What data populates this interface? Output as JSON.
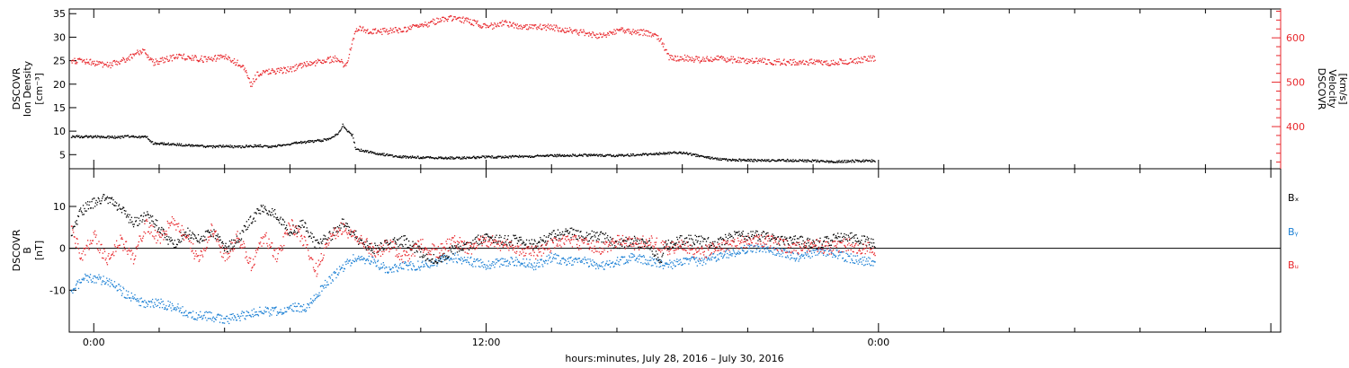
{
  "colors": {
    "density": "#000000",
    "velocity": "#e8262b",
    "bx": "#000000",
    "by": "#1a7fd4",
    "bz": "#e8262b",
    "axis": "#000000"
  },
  "x_axis": {
    "label": "hours:minutes, July 28, 2016 – July 30, 2016",
    "range_hours": [
      -0.75,
      36.3
    ],
    "ticks": [
      {
        "hour": 0,
        "label": "0:00"
      },
      {
        "hour": 12,
        "label": "12:00"
      },
      {
        "hour": 24,
        "label": "0:00"
      }
    ],
    "minor_every_hours": 2
  },
  "chart_data": [
    {
      "type": "scatter",
      "panel": "top",
      "left_axis": {
        "label_lines": [
          "DSCOVR",
          "Ion Density",
          "[cm⁻³]"
        ],
        "ylim": [
          2,
          36
        ],
        "ticks": [
          5,
          10,
          15,
          20,
          25,
          30,
          35
        ]
      },
      "right_axis": {
        "label_lines": [
          "DSCOVR",
          "Velocity",
          "[km/s]"
        ],
        "ylim": [
          305,
          665
        ],
        "ticks": [
          400,
          500,
          600
        ]
      },
      "series": [
        {
          "key": "density",
          "axis": "left",
          "points": [
            [
              -0.7,
              9.0
            ],
            [
              0,
              8.9
            ],
            [
              0.8,
              8.8
            ],
            [
              0.9,
              9.0
            ],
            [
              1.4,
              8.9
            ],
            [
              1.5,
              8.8
            ],
            [
              1.6,
              9.0
            ],
            [
              1.8,
              7.5
            ],
            [
              2.5,
              7.3
            ],
            [
              3,
              7.0
            ],
            [
              3.5,
              6.8
            ],
            [
              4,
              6.9
            ],
            [
              4.5,
              6.8
            ],
            [
              5,
              7.0
            ],
            [
              5.4,
              6.8
            ],
            [
              5.8,
              7.2
            ],
            [
              6.2,
              7.6
            ],
            [
              6.6,
              7.9
            ],
            [
              7,
              8.2
            ],
            [
              7.3,
              8.8
            ],
            [
              7.5,
              10.0
            ],
            [
              7.6,
              11.5
            ],
            [
              7.7,
              10.5
            ],
            [
              7.8,
              9.8
            ],
            [
              7.9,
              9.2
            ],
            [
              8.0,
              6.3
            ],
            [
              8.3,
              5.8
            ],
            [
              8.8,
              5.2
            ],
            [
              9.3,
              4.7
            ],
            [
              10,
              4.5
            ],
            [
              11,
              4.4
            ],
            [
              12,
              4.6
            ],
            [
              13,
              4.7
            ],
            [
              14,
              4.9
            ],
            [
              15,
              5.0
            ],
            [
              16,
              4.9
            ],
            [
              17,
              5.2
            ],
            [
              17.8,
              5.6
            ],
            [
              18.2,
              5.3
            ],
            [
              18.5,
              4.8
            ],
            [
              19,
              4.2
            ],
            [
              19.5,
              4.0
            ],
            [
              20,
              3.9
            ],
            [
              21,
              3.9
            ],
            [
              22,
              3.8
            ],
            [
              22.5,
              3.6
            ],
            [
              23,
              3.7
            ],
            [
              23.5,
              3.8
            ],
            [
              23.9,
              3.8
            ]
          ]
        },
        {
          "key": "velocity",
          "axis": "right",
          "points": [
            [
              -0.7,
              550
            ],
            [
              0,
              545
            ],
            [
              0.5,
              540
            ],
            [
              0.9,
              550
            ],
            [
              1.2,
              562
            ],
            [
              1.5,
              575
            ],
            [
              1.8,
              545
            ],
            [
              2.2,
              552
            ],
            [
              2.6,
              560
            ],
            [
              3,
              556
            ],
            [
              3.5,
              552
            ],
            [
              4,
              560
            ],
            [
              4.3,
              547
            ],
            [
              4.6,
              535
            ],
            [
              4.8,
              495
            ],
            [
              5,
              520
            ],
            [
              5.5,
              525
            ],
            [
              6,
              530
            ],
            [
              6.5,
              542
            ],
            [
              7,
              548
            ],
            [
              7.4,
              555
            ],
            [
              7.7,
              538
            ],
            [
              8,
              622
            ],
            [
              8.5,
              615
            ],
            [
              9,
              616
            ],
            [
              9.5,
              620
            ],
            [
              10,
              628
            ],
            [
              10.5,
              640
            ],
            [
              11,
              645
            ],
            [
              11.5,
              638
            ],
            [
              12,
              625
            ],
            [
              12.3,
              630
            ],
            [
              12.5,
              635
            ],
            [
              13,
              628
            ],
            [
              13.5,
              625
            ],
            [
              14,
              625
            ],
            [
              14.5,
              618
            ],
            [
              15,
              612
            ],
            [
              15.5,
              605
            ],
            [
              16,
              618
            ],
            [
              16.5,
              615
            ],
            [
              17,
              612
            ],
            [
              17.3,
              600
            ],
            [
              17.6,
              555
            ],
            [
              18,
              556
            ],
            [
              18.5,
              552
            ],
            [
              19,
              555
            ],
            [
              19.5,
              552
            ],
            [
              20,
              549
            ],
            [
              20.5,
              548
            ],
            [
              21,
              546
            ],
            [
              21.5,
              546
            ],
            [
              22,
              547
            ],
            [
              22.5,
              545
            ],
            [
              23,
              548
            ],
            [
              23.5,
              552
            ],
            [
              23.9,
              555
            ]
          ]
        }
      ]
    },
    {
      "type": "scatter",
      "panel": "bottom",
      "left_axis": {
        "label_lines": [
          "DSCOVR",
          "B",
          "[nT]"
        ],
        "ylim": [
          -20,
          19
        ],
        "ticks": [
          -10,
          0,
          10
        ]
      },
      "zero_line": true,
      "legend_position": "right",
      "series": [
        {
          "key": "bx",
          "name": "Bₓ",
          "points": [
            [
              -0.7,
              4
            ],
            [
              -0.4,
              9
            ],
            [
              0,
              11
            ],
            [
              0.4,
              12
            ],
            [
              0.8,
              10
            ],
            [
              1.2,
              6
            ],
            [
              1.6,
              8
            ],
            [
              2,
              5
            ],
            [
              2.4,
              1
            ],
            [
              2.8,
              4
            ],
            [
              3.2,
              2
            ],
            [
              3.6,
              4
            ],
            [
              4,
              0
            ],
            [
              4.4,
              2
            ],
            [
              4.8,
              7
            ],
            [
              5.2,
              10
            ],
            [
              5.6,
              8
            ],
            [
              6,
              4
            ],
            [
              6.4,
              6
            ],
            [
              6.8,
              1
            ],
            [
              7.2,
              3
            ],
            [
              7.6,
              6
            ],
            [
              7.9,
              4
            ],
            [
              8.2,
              1
            ],
            [
              8.6,
              0
            ],
            [
              9,
              1
            ],
            [
              9.5,
              2
            ],
            [
              10,
              -1
            ],
            [
              10.5,
              -3
            ],
            [
              11,
              0
            ],
            [
              11.5,
              1
            ],
            [
              12,
              3
            ],
            [
              12.5,
              2
            ],
            [
              13,
              2
            ],
            [
              13.5,
              1
            ],
            [
              14,
              3
            ],
            [
              14.5,
              4
            ],
            [
              15,
              3
            ],
            [
              15.5,
              3
            ],
            [
              16,
              1
            ],
            [
              16.5,
              2
            ],
            [
              17,
              1
            ],
            [
              17.3,
              -3
            ],
            [
              17.5,
              1
            ],
            [
              18,
              2
            ],
            [
              18.5,
              2
            ],
            [
              19,
              1
            ],
            [
              19.5,
              3
            ],
            [
              20,
              3
            ],
            [
              20.5,
              3
            ],
            [
              21,
              2
            ],
            [
              21.5,
              2
            ],
            [
              22,
              1
            ],
            [
              22.5,
              2
            ],
            [
              23,
              3
            ],
            [
              23.5,
              2
            ],
            [
              23.9,
              1
            ]
          ]
        },
        {
          "key": "by",
          "name": "Bᵧ",
          "points": [
            [
              -0.7,
              -10
            ],
            [
              -0.3,
              -7
            ],
            [
              0,
              -7
            ],
            [
              0.5,
              -8
            ],
            [
              1,
              -11
            ],
            [
              1.5,
              -13
            ],
            [
              2,
              -13
            ],
            [
              2.5,
              -14
            ],
            [
              3,
              -16
            ],
            [
              3.5,
              -16
            ],
            [
              4,
              -17
            ],
            [
              4.5,
              -16
            ],
            [
              5,
              -15
            ],
            [
              5.5,
              -15
            ],
            [
              6,
              -14
            ],
            [
              6.5,
              -14
            ],
            [
              7,
              -9
            ],
            [
              7.5,
              -5
            ],
            [
              8,
              -2
            ],
            [
              8.5,
              -3
            ],
            [
              9,
              -5
            ],
            [
              9.5,
              -4
            ],
            [
              10,
              -4
            ],
            [
              10.5,
              -3
            ],
            [
              11,
              -2
            ],
            [
              11.5,
              -3
            ],
            [
              12,
              -4
            ],
            [
              12.5,
              -3
            ],
            [
              13,
              -3
            ],
            [
              13.5,
              -4
            ],
            [
              14,
              -2
            ],
            [
              14.5,
              -3
            ],
            [
              15,
              -3
            ],
            [
              15.5,
              -4
            ],
            [
              16,
              -3
            ],
            [
              16.5,
              -2
            ],
            [
              17,
              -3
            ],
            [
              17.5,
              -4
            ],
            [
              18,
              -3
            ],
            [
              18.5,
              -3
            ],
            [
              19,
              -2
            ],
            [
              19.5,
              -1
            ],
            [
              20,
              0
            ],
            [
              20.5,
              0
            ],
            [
              21,
              -1
            ],
            [
              21.5,
              -2
            ],
            [
              22,
              -1
            ],
            [
              22.5,
              -1
            ],
            [
              23,
              -2
            ],
            [
              23.5,
              -3
            ],
            [
              23.9,
              -3
            ]
          ]
        },
        {
          "key": "bz",
          "name": "Bᵤ",
          "points": [
            [
              -0.7,
              5
            ],
            [
              -0.4,
              -2
            ],
            [
              0,
              3
            ],
            [
              0.4,
              -3
            ],
            [
              0.8,
              2
            ],
            [
              1.2,
              -2
            ],
            [
              1.6,
              6
            ],
            [
              2,
              2
            ],
            [
              2.4,
              7
            ],
            [
              2.8,
              3
            ],
            [
              3.2,
              -3
            ],
            [
              3.6,
              5
            ],
            [
              4,
              -2
            ],
            [
              4.4,
              3
            ],
            [
              4.8,
              -4
            ],
            [
              5.2,
              3
            ],
            [
              5.6,
              -2
            ],
            [
              6,
              6
            ],
            [
              6.4,
              2
            ],
            [
              6.8,
              -5
            ],
            [
              7.2,
              3
            ],
            [
              7.6,
              5
            ],
            [
              7.9,
              3
            ],
            [
              8.2,
              2
            ],
            [
              8.6,
              -1
            ],
            [
              9,
              1
            ],
            [
              9.5,
              -2
            ],
            [
              10,
              1
            ],
            [
              10.5,
              -1
            ],
            [
              11,
              2
            ],
            [
              11.5,
              0
            ],
            [
              12,
              2
            ],
            [
              12.5,
              1
            ],
            [
              13,
              0
            ],
            [
              13.5,
              -1
            ],
            [
              14,
              1
            ],
            [
              14.5,
              2
            ],
            [
              15,
              1
            ],
            [
              15.5,
              0
            ],
            [
              16,
              2
            ],
            [
              16.5,
              1
            ],
            [
              17,
              2
            ],
            [
              17.5,
              0
            ],
            [
              18,
              1
            ],
            [
              18.5,
              -1
            ],
            [
              19,
              0
            ],
            [
              19.5,
              1
            ],
            [
              20,
              2
            ],
            [
              20.5,
              2
            ],
            [
              21,
              1
            ],
            [
              21.5,
              0
            ],
            [
              22,
              1
            ],
            [
              22.5,
              0
            ],
            [
              23,
              1
            ],
            [
              23.5,
              0
            ],
            [
              23.9,
              0
            ]
          ]
        }
      ]
    }
  ]
}
